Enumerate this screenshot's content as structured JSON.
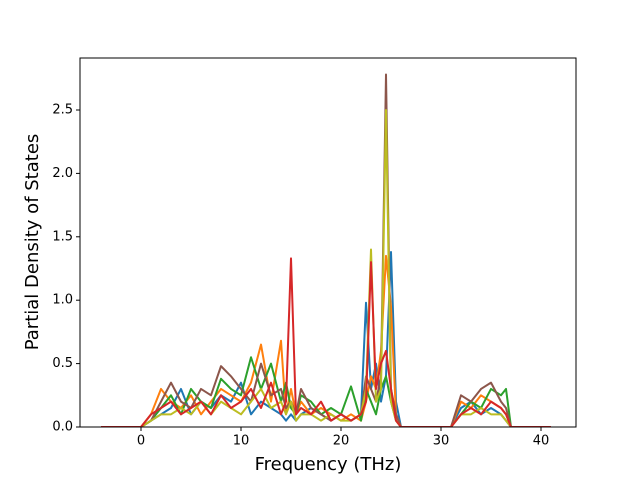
{
  "chart_data": {
    "type": "line",
    "x_label": "Frequency (THz)",
    "y_label": "Partial Density of States",
    "x": [
      -4,
      0,
      1,
      2,
      3,
      4,
      5,
      6,
      7,
      8,
      9,
      10,
      11,
      12,
      13,
      14,
      14.5,
      15,
      15.5,
      16,
      17,
      18,
      19,
      20,
      21,
      22,
      22.5,
      23,
      23.5,
      24,
      24.5,
      25,
      25.5,
      26,
      31,
      32,
      33,
      34,
      35,
      36,
      36.5,
      37,
      41
    ],
    "series": [
      {
        "color": "#1f77b4",
        "values": [
          0,
          0,
          0.05,
          0.1,
          0.15,
          0.3,
          0.1,
          0.2,
          0.15,
          0.25,
          0.2,
          0.35,
          0.1,
          0.2,
          0.15,
          0.1,
          0.05,
          0.1,
          0.05,
          0.1,
          0.15,
          0.1,
          0.05,
          0.1,
          0.05,
          0.1,
          0.98,
          0.3,
          0.5,
          0.2,
          0.4,
          1.38,
          0.2,
          0,
          0,
          0.15,
          0.2,
          0.1,
          0.15,
          0.1,
          0.05,
          0,
          0
        ]
      },
      {
        "color": "#ff7f0e",
        "values": [
          0,
          0,
          0.1,
          0.3,
          0.2,
          0.15,
          0.25,
          0.1,
          0.2,
          0.3,
          0.25,
          0.2,
          0.35,
          0.65,
          0.2,
          0.68,
          0.1,
          0.3,
          0.1,
          0.2,
          0.1,
          0.15,
          0.1,
          0.05,
          0.1,
          0.05,
          0.2,
          0.4,
          0.3,
          0.6,
          1.35,
          0.95,
          0.1,
          0,
          0,
          0.2,
          0.15,
          0.25,
          0.2,
          0.15,
          0.1,
          0,
          0
        ]
      },
      {
        "color": "#2ca02c",
        "values": [
          0,
          0,
          0.05,
          0.15,
          0.25,
          0.1,
          0.3,
          0.2,
          0.15,
          0.38,
          0.3,
          0.25,
          0.55,
          0.3,
          0.5,
          0.2,
          0.35,
          0.15,
          0.1,
          0.25,
          0.2,
          0.1,
          0.15,
          0.1,
          0.32,
          0.05,
          0.3,
          0.2,
          0.1,
          0.3,
          0.4,
          0.2,
          0.05,
          0,
          0,
          0.1,
          0.2,
          0.15,
          0.3,
          0.25,
          0.3,
          0,
          0
        ]
      },
      {
        "color": "#8c564b",
        "values": [
          0,
          0,
          0.05,
          0.2,
          0.35,
          0.2,
          0.15,
          0.3,
          0.25,
          0.48,
          0.4,
          0.3,
          0.2,
          0.5,
          0.25,
          0.3,
          0.15,
          0.2,
          0.1,
          0.3,
          0.15,
          0.1,
          0.05,
          0.1,
          0.05,
          0.1,
          0.4,
          0.3,
          0.2,
          0.4,
          2.78,
          0.3,
          0.1,
          0,
          0,
          0.25,
          0.2,
          0.3,
          0.35,
          0.2,
          0.15,
          0,
          0
        ]
      },
      {
        "color": "#bcbd22",
        "values": [
          0,
          0,
          0.05,
          0.1,
          0.1,
          0.15,
          0.1,
          0.2,
          0.1,
          0.2,
          0.15,
          0.1,
          0.2,
          0.3,
          0.15,
          0.2,
          0.1,
          0.2,
          0.05,
          0.1,
          0.1,
          0.05,
          0.1,
          0.05,
          0.05,
          0.1,
          0.3,
          1.4,
          0.2,
          0.3,
          2.5,
          0.2,
          0.05,
          0,
          0,
          0.1,
          0.1,
          0.15,
          0.1,
          0.1,
          0.05,
          0,
          0
        ]
      },
      {
        "color": "#d62728",
        "values": [
          0,
          0,
          0.1,
          0.15,
          0.2,
          0.1,
          0.15,
          0.2,
          0.1,
          0.25,
          0.15,
          0.2,
          0.3,
          0.15,
          0.35,
          0.1,
          0.2,
          1.33,
          0.1,
          0.15,
          0.1,
          0.2,
          0.05,
          0.1,
          0.05,
          0.1,
          0.2,
          1.3,
          0.3,
          0.5,
          0.6,
          0.3,
          0.05,
          0,
          0,
          0.1,
          0.15,
          0.1,
          0.2,
          0.15,
          0.1,
          0,
          0
        ]
      }
    ],
    "xlim": [
      -6.1,
      43.5
    ],
    "ylim": [
      0,
      2.91
    ],
    "xticks": [
      0,
      10,
      20,
      30,
      40
    ],
    "yticks": [
      {
        "value": 0,
        "label": "0.0"
      },
      0.5,
      {
        "value": 1,
        "label": "1.0"
      },
      1.5,
      {
        "value": 2,
        "label": "2.0"
      },
      2.5
    ]
  }
}
